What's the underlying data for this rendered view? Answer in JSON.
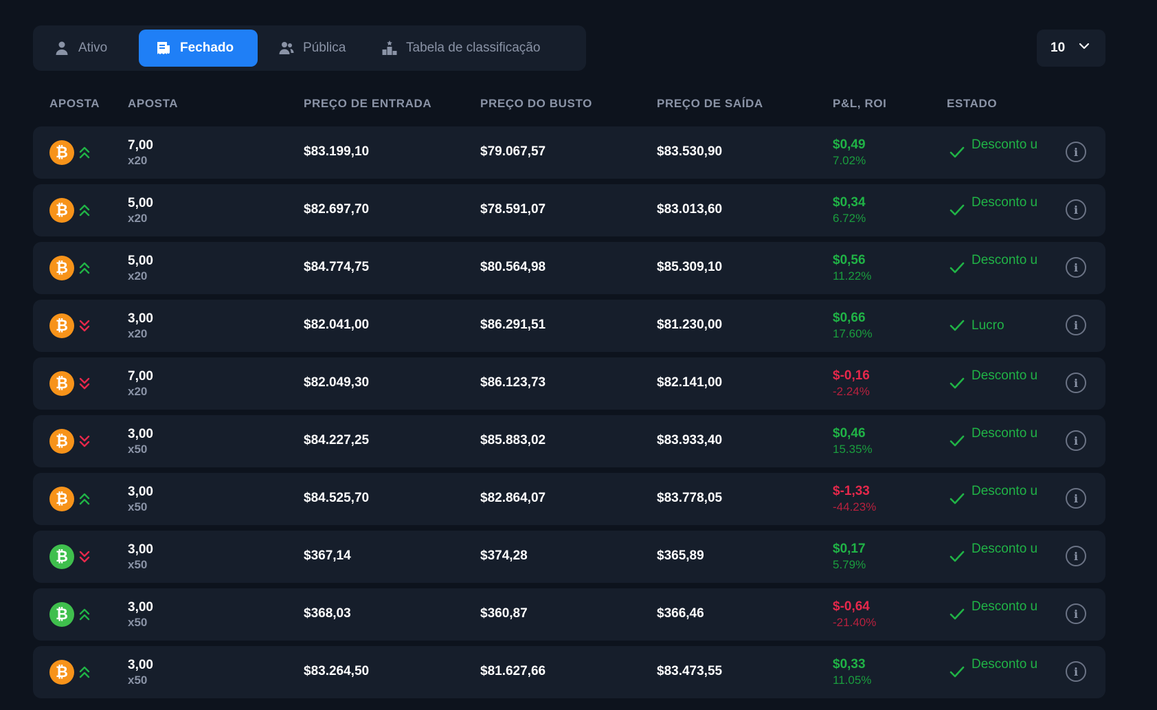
{
  "tabs": [
    {
      "label": "Ativo",
      "icon": "user-icon",
      "active": false
    },
    {
      "label": "Fechado",
      "icon": "receipt-icon",
      "active": true
    },
    {
      "label": "Pública",
      "icon": "users-icon",
      "active": false
    },
    {
      "label": "Tabela de classificação",
      "icon": "podium-icon",
      "active": false
    }
  ],
  "page_size": {
    "value": "10",
    "icon": "chevron-down-icon"
  },
  "columns": [
    "APOSTA",
    "APOSTA",
    "PREÇO DE ENTRADA",
    "PREÇO DO BUSTO",
    "PREÇO DE SAÍDA",
    "P&L, ROI",
    "ESTADO"
  ],
  "colors": {
    "accent": "#1f7ff6",
    "positive": "#20b346",
    "negative": "#e5284b",
    "btc": "#f7931a",
    "bch": "#3fbf4d"
  },
  "rows": [
    {
      "coin": "btc",
      "direction": "up",
      "amount": "7,00",
      "leverage": "x20",
      "entry": "$83.199,10",
      "bust": "$79.067,57",
      "exit": "$83.530,90",
      "pnl": "$0,49",
      "roi": "7.02%",
      "sign": "pos",
      "status": "Desconto u"
    },
    {
      "coin": "btc",
      "direction": "up",
      "amount": "5,00",
      "leverage": "x20",
      "entry": "$82.697,70",
      "bust": "$78.591,07",
      "exit": "$83.013,60",
      "pnl": "$0,34",
      "roi": "6.72%",
      "sign": "pos",
      "status": "Desconto u"
    },
    {
      "coin": "btc",
      "direction": "up",
      "amount": "5,00",
      "leverage": "x20",
      "entry": "$84.774,75",
      "bust": "$80.564,98",
      "exit": "$85.309,10",
      "pnl": "$0,56",
      "roi": "11.22%",
      "sign": "pos",
      "status": "Desconto u"
    },
    {
      "coin": "btc",
      "direction": "down",
      "amount": "3,00",
      "leverage": "x20",
      "entry": "$82.041,00",
      "bust": "$86.291,51",
      "exit": "$81.230,00",
      "pnl": "$0,66",
      "roi": "17.60%",
      "sign": "pos",
      "status": "Lucro"
    },
    {
      "coin": "btc",
      "direction": "down",
      "amount": "7,00",
      "leverage": "x20",
      "entry": "$82.049,30",
      "bust": "$86.123,73",
      "exit": "$82.141,00",
      "pnl": "$-0,16",
      "roi": "-2.24%",
      "sign": "neg",
      "status": "Desconto u"
    },
    {
      "coin": "btc",
      "direction": "down",
      "amount": "3,00",
      "leverage": "x50",
      "entry": "$84.227,25",
      "bust": "$85.883,02",
      "exit": "$83.933,40",
      "pnl": "$0,46",
      "roi": "15.35%",
      "sign": "pos",
      "status": "Desconto u"
    },
    {
      "coin": "btc",
      "direction": "up",
      "amount": "3,00",
      "leverage": "x50",
      "entry": "$84.525,70",
      "bust": "$82.864,07",
      "exit": "$83.778,05",
      "pnl": "$-1,33",
      "roi": "-44.23%",
      "sign": "neg",
      "status": "Desconto u"
    },
    {
      "coin": "bch",
      "direction": "down",
      "amount": "3,00",
      "leverage": "x50",
      "entry": "$367,14",
      "bust": "$374,28",
      "exit": "$365,89",
      "pnl": "$0,17",
      "roi": "5.79%",
      "sign": "pos",
      "status": "Desconto u"
    },
    {
      "coin": "bch",
      "direction": "up",
      "amount": "3,00",
      "leverage": "x50",
      "entry": "$368,03",
      "bust": "$360,87",
      "exit": "$366,46",
      "pnl": "$-0,64",
      "roi": "-21.40%",
      "sign": "neg",
      "status": "Desconto u"
    },
    {
      "coin": "btc",
      "direction": "up",
      "amount": "3,00",
      "leverage": "x50",
      "entry": "$83.264,50",
      "bust": "$81.627,66",
      "exit": "$83.473,55",
      "pnl": "$0,33",
      "roi": "11.05%",
      "sign": "pos",
      "status": "Desconto u"
    }
  ]
}
